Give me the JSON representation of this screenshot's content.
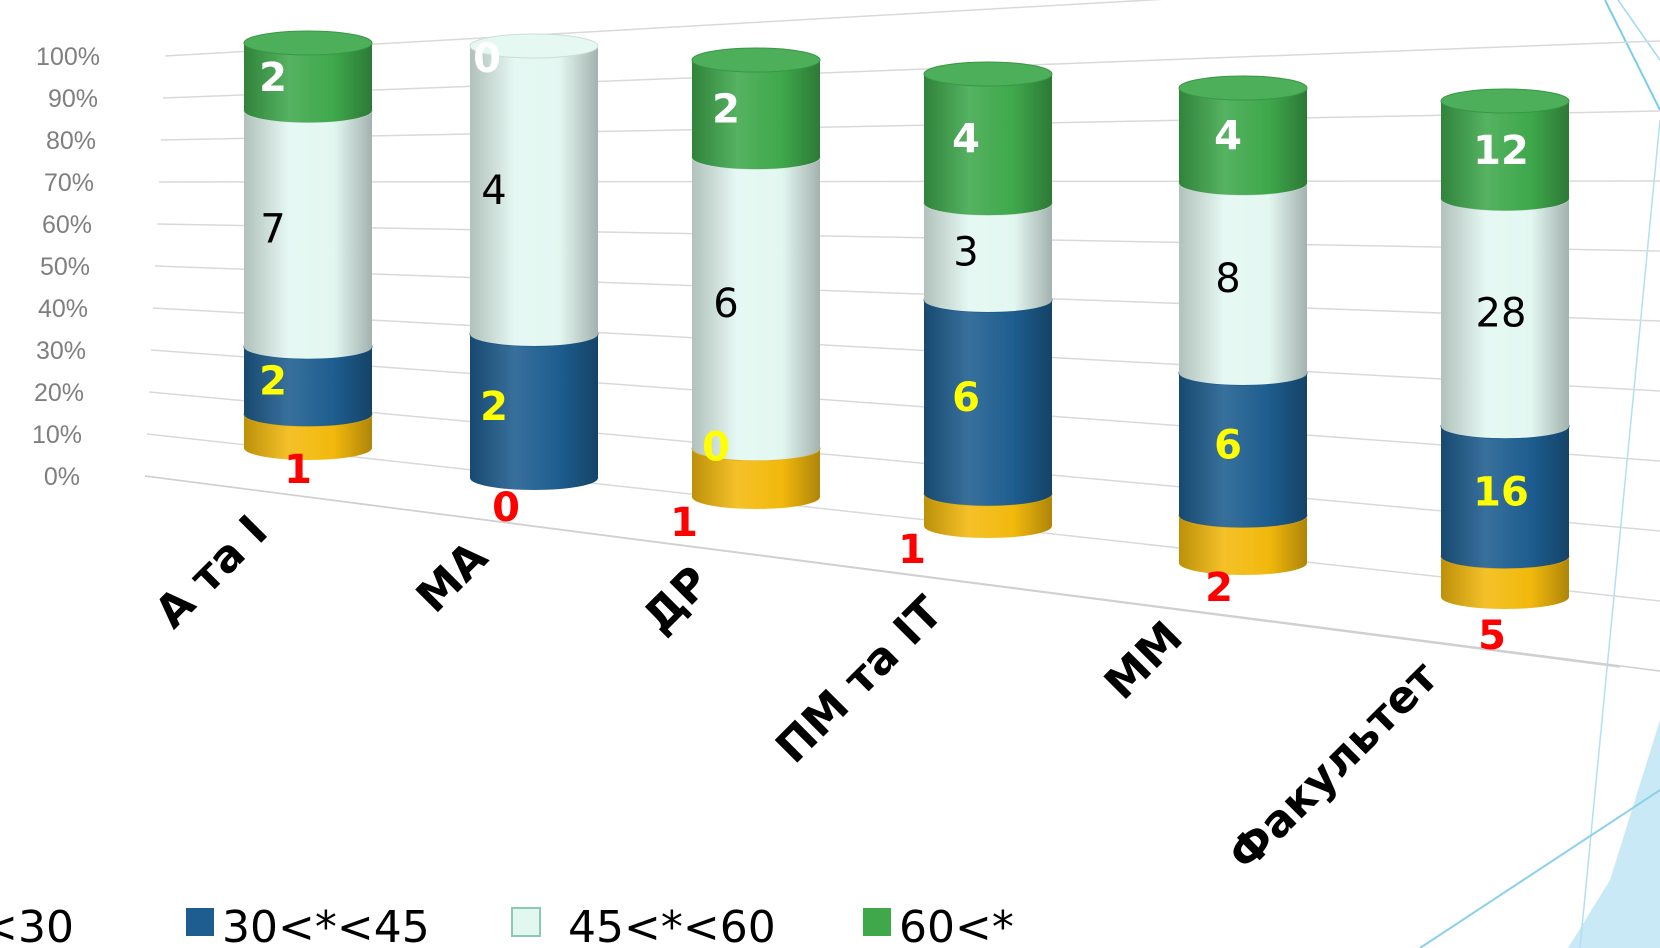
{
  "chart_data": {
    "type": "bar",
    "stacked": "percent",
    "three_d": true,
    "bar_shape": "cylinder",
    "categories": [
      "А та І",
      "МА",
      "ДР",
      "ПМ та ІТ",
      "ММ",
      "Факультет"
    ],
    "series": [
      {
        "name": "<30",
        "values": [
          1,
          0,
          1,
          1,
          2,
          5
        ],
        "color": "#f2b90c",
        "label_color": "#ff0000"
      },
      {
        "name": "30<*<45",
        "values": [
          2,
          2,
          0,
          6,
          6,
          16
        ],
        "color": "#1d5d8f",
        "label_color": "#ffff00"
      },
      {
        "name": "45<*<60",
        "values": [
          7,
          4,
          6,
          3,
          8,
          28
        ],
        "color": "#e3f7f1",
        "label_color": "#000000"
      },
      {
        "name": "60<*",
        "values": [
          2,
          0,
          2,
          4,
          4,
          12
        ],
        "color": "#3ea84b",
        "label_color": "#ffffff"
      }
    ],
    "ylim": [
      0,
      100
    ],
    "ytick_labels": [
      "0%",
      "10%",
      "20%",
      "30%",
      "40%",
      "50%",
      "60%",
      "70%",
      "80%",
      "90%",
      "100%"
    ],
    "grid": true,
    "legend_position": "bottom",
    "xlabel": "",
    "ylabel": ""
  },
  "legend": {
    "first_label_visible": "<30",
    "items": [
      {
        "label": "30<*<45",
        "color": "#1d5d8f"
      },
      {
        "label": "45<*<60",
        "color": "#e3f7f1"
      },
      {
        "label": "60<*",
        "color": "#3ea84b"
      }
    ]
  }
}
